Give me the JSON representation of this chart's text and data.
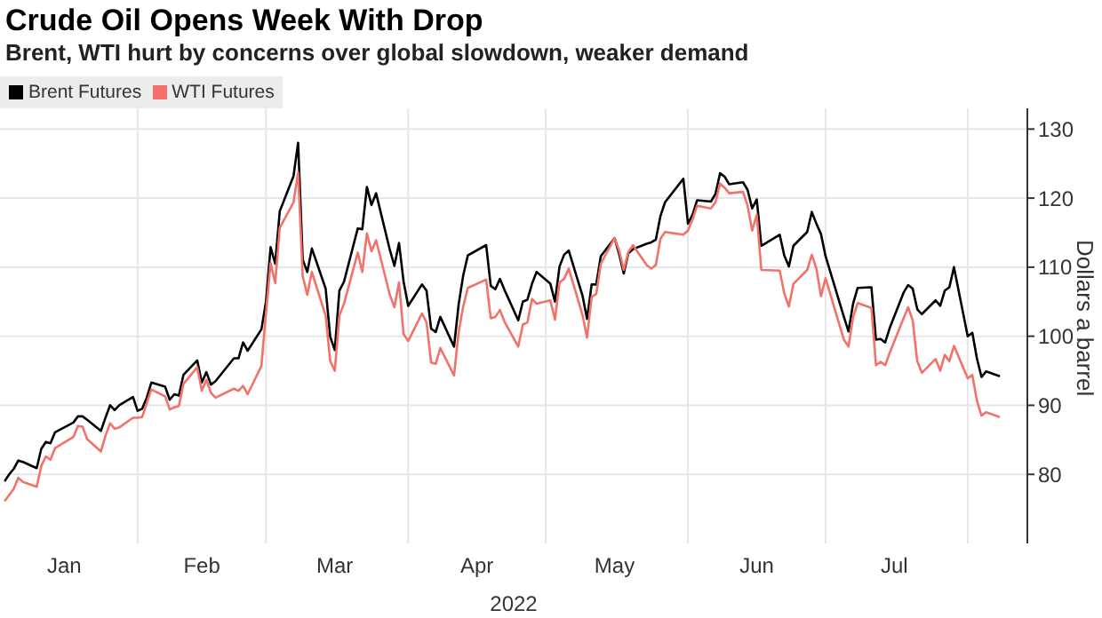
{
  "chart_data": {
    "type": "line",
    "title": "Crude Oil Opens Week With Drop",
    "subtitle": "Brent, WTI hurt by concerns over global slowdown, weaker demand",
    "xlabel": "2022",
    "ylabel": "Dollars a barrel",
    "x": [
      "2022-01-03",
      "2022-01-04",
      "2022-01-05",
      "2022-01-06",
      "2022-01-07",
      "2022-01-10",
      "2022-01-11",
      "2022-01-12",
      "2022-01-13",
      "2022-01-14",
      "2022-01-18",
      "2022-01-19",
      "2022-01-20",
      "2022-01-21",
      "2022-01-24",
      "2022-01-25",
      "2022-01-26",
      "2022-01-27",
      "2022-01-28",
      "2022-01-31",
      "2022-02-01",
      "2022-02-02",
      "2022-02-03",
      "2022-02-04",
      "2022-02-07",
      "2022-02-08",
      "2022-02-09",
      "2022-02-10",
      "2022-02-11",
      "2022-02-14",
      "2022-02-15",
      "2022-02-16",
      "2022-02-17",
      "2022-02-18",
      "2022-02-22",
      "2022-02-23",
      "2022-02-24",
      "2022-02-25",
      "2022-02-28",
      "2022-03-01",
      "2022-03-02",
      "2022-03-03",
      "2022-03-04",
      "2022-03-07",
      "2022-03-08",
      "2022-03-09",
      "2022-03-10",
      "2022-03-11",
      "2022-03-14",
      "2022-03-15",
      "2022-03-16",
      "2022-03-17",
      "2022-03-18",
      "2022-03-21",
      "2022-03-22",
      "2022-03-23",
      "2022-03-24",
      "2022-03-25",
      "2022-03-28",
      "2022-03-29",
      "2022-03-30",
      "2022-03-31",
      "2022-04-01",
      "2022-04-04",
      "2022-04-05",
      "2022-04-06",
      "2022-04-07",
      "2022-04-08",
      "2022-04-11",
      "2022-04-12",
      "2022-04-13",
      "2022-04-14",
      "2022-04-18",
      "2022-04-19",
      "2022-04-20",
      "2022-04-21",
      "2022-04-22",
      "2022-04-25",
      "2022-04-26",
      "2022-04-27",
      "2022-04-28",
      "2022-04-29",
      "2022-05-02",
      "2022-05-03",
      "2022-05-04",
      "2022-05-05",
      "2022-05-06",
      "2022-05-09",
      "2022-05-10",
      "2022-05-11",
      "2022-05-12",
      "2022-05-13",
      "2022-05-16",
      "2022-05-17",
      "2022-05-18",
      "2022-05-19",
      "2022-05-20",
      "2022-05-23",
      "2022-05-24",
      "2022-05-25",
      "2022-05-26",
      "2022-05-27",
      "2022-05-31",
      "2022-06-01",
      "2022-06-02",
      "2022-06-03",
      "2022-06-06",
      "2022-06-07",
      "2022-06-08",
      "2022-06-09",
      "2022-06-10",
      "2022-06-13",
      "2022-06-14",
      "2022-06-15",
      "2022-06-16",
      "2022-06-17",
      "2022-06-21",
      "2022-06-22",
      "2022-06-23",
      "2022-06-24",
      "2022-06-27",
      "2022-06-28",
      "2022-06-29",
      "2022-06-30",
      "2022-07-01",
      "2022-07-05",
      "2022-07-06",
      "2022-07-07",
      "2022-07-08",
      "2022-07-11",
      "2022-07-12",
      "2022-07-13",
      "2022-07-14",
      "2022-07-15",
      "2022-07-18",
      "2022-07-19",
      "2022-07-20",
      "2022-07-21",
      "2022-07-22",
      "2022-07-25",
      "2022-07-26",
      "2022-07-27",
      "2022-07-28",
      "2022-07-29",
      "2022-08-01",
      "2022-08-02",
      "2022-08-03",
      "2022-08-04",
      "2022-08-05",
      "2022-08-08"
    ],
    "series": [
      {
        "name": "Brent Futures",
        "color": "#000000",
        "values": [
          79.0,
          80.0,
          80.8,
          82.0,
          81.8,
          80.9,
          83.7,
          84.7,
          84.5,
          86.1,
          87.5,
          88.4,
          88.4,
          87.9,
          86.3,
          88.2,
          90.0,
          89.3,
          90.0,
          91.2,
          89.2,
          89.5,
          91.1,
          93.3,
          92.7,
          90.8,
          91.6,
          91.4,
          94.4,
          96.5,
          93.3,
          94.8,
          93.0,
          93.5,
          96.8,
          96.8,
          99.1,
          97.9,
          101.0,
          105.0,
          112.9,
          110.5,
          118.1,
          123.2,
          128.0,
          111.1,
          109.3,
          112.7,
          106.9,
          99.9,
          98.0,
          106.6,
          107.9,
          115.6,
          115.5,
          121.6,
          119.0,
          120.7,
          112.5,
          110.2,
          113.5,
          107.9,
          104.4,
          107.5,
          106.6,
          101.1,
          100.6,
          102.8,
          98.5,
          104.6,
          108.8,
          111.7,
          113.2,
          107.3,
          106.8,
          108.3,
          106.7,
          102.3,
          105.0,
          105.3,
          107.6,
          109.3,
          107.6,
          105.0,
          110.1,
          111.8,
          112.4,
          105.9,
          102.5,
          107.5,
          107.5,
          111.6,
          114.2,
          111.9,
          109.1,
          112.0,
          112.6,
          113.4,
          113.6,
          114.0,
          117.4,
          119.4,
          122.8,
          116.3,
          117.6,
          119.7,
          119.5,
          120.6,
          123.6,
          123.1,
          122.0,
          122.3,
          121.2,
          118.5,
          119.8,
          113.1,
          114.7,
          111.7,
          110.1,
          113.1,
          115.1,
          118.0,
          116.3,
          114.8,
          111.6,
          102.8,
          100.7,
          104.7,
          107.0,
          107.1,
          99.5,
          99.6,
          99.1,
          101.2,
          106.3,
          107.4,
          106.9,
          103.9,
          103.2,
          105.2,
          104.4,
          106.6,
          107.1,
          110.0,
          100.0,
          100.5,
          96.8,
          94.1,
          94.9,
          94.2
        ]
      },
      {
        "name": "WTI Futures",
        "color": "#f2726b",
        "values": [
          76.1,
          77.0,
          77.9,
          79.5,
          78.9,
          78.2,
          81.2,
          82.6,
          82.1,
          83.8,
          85.4,
          87.0,
          86.9,
          85.1,
          83.3,
          85.6,
          87.4,
          86.6,
          86.8,
          88.2,
          88.2,
          88.3,
          90.3,
          92.3,
          91.3,
          89.4,
          89.7,
          89.9,
          93.1,
          95.5,
          92.1,
          93.7,
          91.8,
          91.1,
          92.4,
          92.1,
          92.8,
          91.6,
          95.7,
          103.4,
          110.6,
          107.7,
          115.7,
          119.4,
          123.7,
          108.7,
          106.0,
          109.3,
          103.0,
          96.4,
          95.0,
          103.0,
          104.7,
          112.1,
          109.3,
          114.9,
          112.3,
          113.9,
          106.0,
          104.2,
          107.8,
          100.3,
          99.3,
          103.3,
          102.0,
          96.2,
          96.0,
          98.3,
          94.3,
          100.6,
          104.3,
          107.0,
          108.2,
          102.6,
          102.8,
          103.8,
          102.1,
          98.5,
          101.7,
          102.0,
          105.4,
          104.7,
          105.2,
          102.4,
          107.8,
          108.3,
          109.8,
          103.1,
          99.8,
          105.7,
          106.1,
          110.5,
          114.2,
          112.4,
          109.6,
          112.2,
          113.2,
          110.3,
          109.8,
          110.3,
          114.1,
          115.1,
          114.7,
          115.3,
          116.9,
          118.9,
          118.5,
          119.4,
          122.1,
          121.5,
          120.7,
          120.9,
          118.9,
          115.3,
          117.6,
          109.6,
          109.5,
          106.2,
          104.3,
          107.6,
          109.6,
          111.8,
          109.8,
          105.8,
          108.4,
          99.5,
          98.5,
          102.7,
          104.8,
          104.1,
          95.8,
          96.3,
          95.8,
          97.6,
          102.6,
          104.2,
          102.3,
          96.4,
          94.7,
          96.7,
          95.0,
          97.3,
          96.4,
          98.6,
          93.9,
          94.4,
          90.7,
          88.5,
          89.0,
          88.3
        ]
      }
    ],
    "xlim": [
      "2022-01-02",
      "2022-08-14"
    ],
    "xticks": [
      {
        "value": "2022-01-16",
        "label": "Jan"
      },
      {
        "value": "2022-02-01",
        "label": null
      },
      {
        "value": "2022-02-15",
        "label": "Feb"
      },
      {
        "value": "2022-03-01",
        "label": null
      },
      {
        "value": "2022-03-16",
        "label": "Mar"
      },
      {
        "value": "2022-04-01",
        "label": null
      },
      {
        "value": "2022-04-16",
        "label": "Apr"
      },
      {
        "value": "2022-05-01",
        "label": null
      },
      {
        "value": "2022-05-16",
        "label": "May"
      },
      {
        "value": "2022-06-01",
        "label": null
      },
      {
        "value": "2022-06-16",
        "label": "Jun"
      },
      {
        "value": "2022-07-01",
        "label": null
      },
      {
        "value": "2022-07-16",
        "label": "Jul"
      },
      {
        "value": "2022-08-01",
        "label": null
      }
    ],
    "ylim": [
      70,
      133
    ],
    "yticks": [
      80,
      90,
      100,
      110,
      120,
      130
    ],
    "grid": true,
    "legend": "top left",
    "marker": "none",
    "line_style": "solid"
  }
}
